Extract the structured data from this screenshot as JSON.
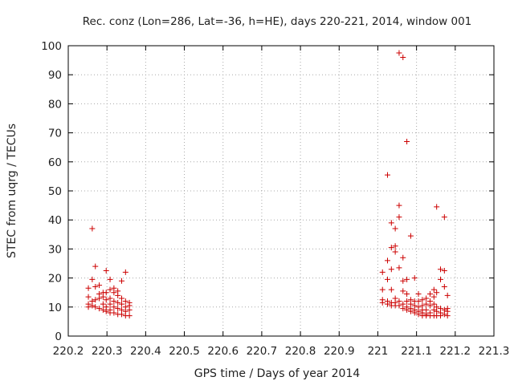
{
  "chart_data": {
    "type": "scatter",
    "title": "Rec. conz (Lon=286, Lat=-36, h=HE), days 220-221, 2014, window 001",
    "xlabel": "GPS time / Days of year 2014",
    "ylabel": "STEC from uqrg / TECUs",
    "xlim": [
      220.2,
      221.3
    ],
    "ylim": [
      0,
      100
    ],
    "xticks": [
      220.2,
      220.3,
      220.4,
      220.5,
      220.6,
      220.7,
      220.8,
      220.9,
      221.0,
      221.1,
      221.2,
      221.3
    ],
    "xtick_labels": [
      "220.2",
      "220.3",
      "220.4",
      "220.5",
      "220.6",
      "220.7",
      "220.8",
      "220.9",
      "221",
      "221.1",
      "221.2",
      "221.3"
    ],
    "yticks": [
      0,
      10,
      20,
      30,
      40,
      50,
      60,
      70,
      80,
      90,
      100
    ],
    "ytick_labels": [
      "0",
      "10",
      "20",
      "30",
      "40",
      "50",
      "60",
      "70",
      "80",
      "90",
      "100"
    ],
    "grid": true,
    "marker": "plus",
    "color": "#cc0000",
    "series": [
      {
        "points": [
          [
            220.252,
            16.5
          ],
          [
            220.252,
            13.5
          ],
          [
            220.252,
            11.0
          ],
          [
            220.252,
            10.0
          ],
          [
            220.262,
            37.0
          ],
          [
            220.262,
            19.5
          ],
          [
            220.262,
            12.0
          ],
          [
            220.262,
            10.5
          ],
          [
            220.27,
            24.0
          ],
          [
            220.27,
            17.0
          ],
          [
            220.27,
            12.5
          ],
          [
            220.27,
            10.0
          ],
          [
            220.28,
            17.5
          ],
          [
            220.28,
            14.5
          ],
          [
            220.28,
            13.0
          ],
          [
            220.28,
            9.5
          ],
          [
            220.29,
            15.0
          ],
          [
            220.29,
            13.5
          ],
          [
            220.29,
            11.0
          ],
          [
            220.29,
            9.0
          ],
          [
            220.298,
            22.5
          ],
          [
            220.298,
            15.0
          ],
          [
            220.298,
            12.5
          ],
          [
            220.298,
            10.0
          ],
          [
            220.298,
            8.5
          ],
          [
            220.308,
            19.5
          ],
          [
            220.308,
            16.0
          ],
          [
            220.308,
            13.0
          ],
          [
            220.308,
            11.0
          ],
          [
            220.308,
            9.0
          ],
          [
            220.308,
            8.0
          ],
          [
            220.318,
            16.5
          ],
          [
            220.318,
            15.0
          ],
          [
            220.318,
            12.0
          ],
          [
            220.318,
            10.0
          ],
          [
            220.318,
            8.0
          ],
          [
            220.328,
            15.5
          ],
          [
            220.328,
            14.0
          ],
          [
            220.328,
            11.5
          ],
          [
            220.328,
            9.5
          ],
          [
            220.328,
            7.5
          ],
          [
            220.338,
            19.0
          ],
          [
            220.338,
            13.0
          ],
          [
            220.338,
            11.0
          ],
          [
            220.338,
            9.0
          ],
          [
            220.338,
            7.5
          ],
          [
            220.348,
            22.0
          ],
          [
            220.348,
            12.0
          ],
          [
            220.348,
            10.0
          ],
          [
            220.348,
            8.5
          ],
          [
            220.348,
            7.0
          ],
          [
            220.358,
            11.5
          ],
          [
            220.358,
            10.5
          ],
          [
            220.358,
            9.0
          ],
          [
            220.358,
            7.0
          ],
          [
            221.012,
            22.0
          ],
          [
            221.012,
            16.0
          ],
          [
            221.012,
            12.5
          ],
          [
            221.012,
            11.5
          ],
          [
            221.025,
            55.5
          ],
          [
            221.025,
            26.0
          ],
          [
            221.025,
            19.5
          ],
          [
            221.025,
            12.0
          ],
          [
            221.025,
            11.0
          ],
          [
            221.035,
            39.0
          ],
          [
            221.035,
            30.5
          ],
          [
            221.035,
            23.0
          ],
          [
            221.035,
            16.0
          ],
          [
            221.035,
            11.5
          ],
          [
            221.035,
            10.5
          ],
          [
            221.045,
            37.0
          ],
          [
            221.045,
            31.0
          ],
          [
            221.045,
            29.0
          ],
          [
            221.045,
            13.0
          ],
          [
            221.045,
            11.5
          ],
          [
            221.045,
            10.5
          ],
          [
            221.055,
            97.5
          ],
          [
            221.055,
            45.0
          ],
          [
            221.055,
            41.0
          ],
          [
            221.055,
            23.5
          ],
          [
            221.055,
            12.0
          ],
          [
            221.055,
            10.5
          ],
          [
            221.065,
            96.0
          ],
          [
            221.065,
            27.0
          ],
          [
            221.065,
            19.0
          ],
          [
            221.065,
            15.5
          ],
          [
            221.065,
            11.0
          ],
          [
            221.065,
            9.5
          ],
          [
            221.075,
            67.0
          ],
          [
            221.075,
            19.5
          ],
          [
            221.075,
            14.5
          ],
          [
            221.075,
            12.0
          ],
          [
            221.075,
            10.0
          ],
          [
            221.075,
            9.0
          ],
          [
            221.085,
            34.5
          ],
          [
            221.085,
            12.5
          ],
          [
            221.085,
            11.0
          ],
          [
            221.085,
            9.5
          ],
          [
            221.085,
            8.5
          ],
          [
            221.095,
            20.0
          ],
          [
            221.095,
            12.0
          ],
          [
            221.095,
            10.5
          ],
          [
            221.095,
            9.0
          ],
          [
            221.095,
            8.0
          ],
          [
            221.105,
            14.5
          ],
          [
            221.105,
            12.0
          ],
          [
            221.105,
            10.0
          ],
          [
            221.105,
            8.5
          ],
          [
            221.105,
            7.5
          ],
          [
            221.115,
            12.5
          ],
          [
            221.115,
            10.5
          ],
          [
            221.115,
            9.0
          ],
          [
            221.115,
            8.0
          ],
          [
            221.115,
            7.0
          ],
          [
            221.125,
            13.0
          ],
          [
            221.125,
            11.0
          ],
          [
            221.125,
            9.0
          ],
          [
            221.125,
            7.5
          ],
          [
            221.125,
            7.0
          ],
          [
            221.135,
            14.5
          ],
          [
            221.135,
            12.0
          ],
          [
            221.135,
            10.5
          ],
          [
            221.135,
            8.0
          ],
          [
            221.135,
            7.0
          ],
          [
            221.145,
            16.0
          ],
          [
            221.145,
            13.5
          ],
          [
            221.145,
            11.0
          ],
          [
            221.145,
            9.0
          ],
          [
            221.145,
            7.0
          ],
          [
            221.152,
            44.5
          ],
          [
            221.152,
            15.0
          ],
          [
            221.152,
            10.0
          ],
          [
            221.152,
            8.5
          ],
          [
            221.152,
            7.0
          ],
          [
            221.162,
            23.0
          ],
          [
            221.162,
            19.5
          ],
          [
            221.162,
            9.5
          ],
          [
            221.162,
            8.0
          ],
          [
            221.162,
            7.0
          ],
          [
            221.172,
            41.0
          ],
          [
            221.172,
            22.5
          ],
          [
            221.172,
            17.0
          ],
          [
            221.172,
            9.0
          ],
          [
            221.172,
            7.5
          ],
          [
            221.18,
            14.0
          ],
          [
            221.18,
            9.5
          ],
          [
            221.18,
            8.5
          ],
          [
            221.18,
            7.0
          ]
        ]
      }
    ]
  }
}
